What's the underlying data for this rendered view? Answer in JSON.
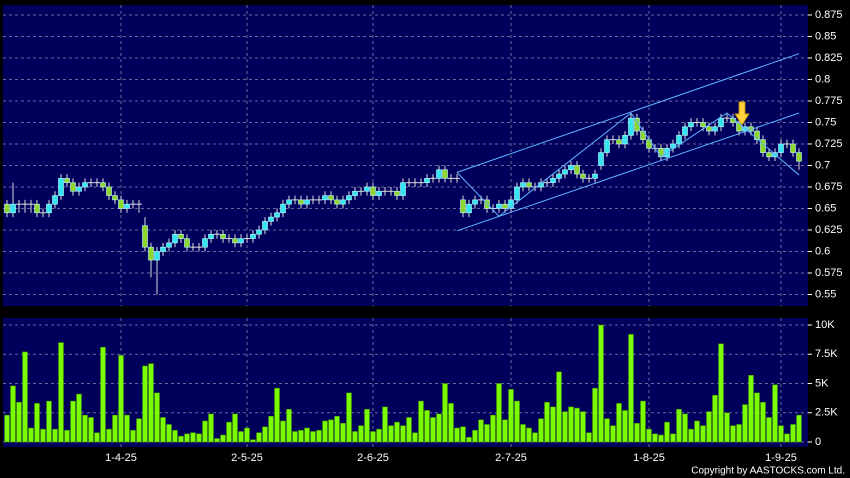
{
  "chart_data": {
    "type": "candlestick",
    "categories": [
      null,
      null,
      null,
      null,
      null,
      null,
      null,
      null,
      null,
      null,
      null,
      null,
      null,
      null,
      null,
      null,
      null,
      null,
      null,
      "1-4-25",
      null,
      null,
      null,
      null,
      null,
      null,
      null,
      null,
      null,
      null,
      null,
      null,
      null,
      null,
      null,
      null,
      null,
      null,
      null,
      null,
      "2-5-25",
      null,
      null,
      null,
      null,
      null,
      null,
      null,
      null,
      null,
      null,
      null,
      null,
      null,
      null,
      null,
      null,
      null,
      null,
      null,
      null,
      "2-6-25",
      null,
      null,
      null,
      null,
      null,
      null,
      null,
      null,
      null,
      null,
      null,
      null,
      null,
      null,
      null,
      null,
      null,
      null,
      null,
      null,
      null,
      null,
      "2-7-25",
      null,
      null,
      null,
      null,
      null,
      null,
      null,
      null,
      null,
      null,
      null,
      null,
      null,
      null,
      null,
      null,
      null,
      null,
      null,
      null,
      null,
      null,
      "1-8-25",
      null,
      null,
      null,
      null,
      null,
      null,
      null,
      null,
      null,
      null,
      null,
      null,
      null,
      null,
      null,
      null,
      null,
      null,
      null,
      null,
      null,
      "1-9-25",
      null,
      null,
      null
    ],
    "open": [
      0.655,
      0.645,
      0.655,
      0.655,
      0.655,
      0.655,
      0.645,
      0.645,
      0.655,
      0.665,
      0.685,
      0.68,
      0.67,
      0.675,
      0.68,
      0.68,
      0.68,
      0.675,
      0.665,
      0.66,
      0.65,
      0.655,
      0.655,
      0.63,
      0.605,
      0.59,
      0.6,
      0.605,
      0.61,
      0.62,
      0.615,
      0.605,
      0.605,
      0.605,
      0.615,
      0.62,
      0.62,
      0.615,
      0.615,
      0.61,
      0.615,
      0.615,
      0.62,
      0.625,
      0.635,
      0.64,
      0.645,
      0.655,
      0.66,
      0.66,
      0.655,
      0.66,
      0.66,
      0.66,
      0.665,
      0.66,
      0.655,
      0.66,
      0.665,
      0.67,
      0.67,
      0.675,
      0.665,
      0.67,
      0.67,
      0.67,
      0.665,
      0.68,
      0.68,
      0.68,
      0.68,
      0.685,
      0.685,
      0.695,
      0.685,
      0.685,
      0.66,
      0.645,
      0.655,
      0.66,
      0.66,
      0.65,
      0.65,
      0.655,
      0.65,
      0.66,
      0.675,
      0.68,
      0.675,
      0.675,
      0.68,
      0.68,
      0.685,
      0.69,
      0.695,
      0.7,
      0.69,
      0.685,
      0.685,
      0.7,
      0.715,
      0.73,
      0.73,
      0.725,
      0.735,
      0.755,
      0.74,
      0.73,
      0.72,
      0.72,
      0.71,
      0.72,
      0.725,
      0.735,
      0.745,
      0.75,
      0.75,
      0.745,
      0.74,
      0.745,
      0.755,
      0.755,
      0.75,
      0.74,
      0.745,
      0.74,
      0.73,
      0.715,
      0.71,
      0.715,
      0.725,
      0.725,
      0.715
    ],
    "high": [
      0.66,
      0.68,
      0.66,
      0.66,
      0.66,
      0.66,
      0.65,
      0.66,
      0.67,
      0.69,
      0.69,
      0.685,
      0.68,
      0.685,
      0.685,
      0.685,
      0.685,
      0.68,
      0.67,
      0.665,
      0.66,
      0.66,
      0.66,
      0.64,
      0.61,
      0.605,
      0.61,
      0.615,
      0.625,
      0.625,
      0.62,
      0.61,
      0.61,
      0.62,
      0.625,
      0.625,
      0.625,
      0.62,
      0.62,
      0.62,
      0.62,
      0.625,
      0.63,
      0.64,
      0.645,
      0.65,
      0.66,
      0.665,
      0.665,
      0.665,
      0.665,
      0.665,
      0.665,
      0.67,
      0.67,
      0.665,
      0.665,
      0.67,
      0.675,
      0.675,
      0.68,
      0.68,
      0.675,
      0.675,
      0.675,
      0.675,
      0.685,
      0.685,
      0.685,
      0.685,
      0.69,
      0.69,
      0.7,
      0.7,
      0.69,
      0.69,
      0.665,
      0.66,
      0.665,
      0.665,
      0.665,
      0.655,
      0.66,
      0.66,
      0.665,
      0.68,
      0.685,
      0.685,
      0.68,
      0.685,
      0.685,
      0.69,
      0.695,
      0.7,
      0.705,
      0.705,
      0.695,
      0.69,
      0.695,
      0.72,
      0.735,
      0.735,
      0.735,
      0.74,
      0.76,
      0.76,
      0.745,
      0.735,
      0.725,
      0.725,
      0.725,
      0.73,
      0.74,
      0.75,
      0.755,
      0.755,
      0.755,
      0.75,
      0.75,
      0.76,
      0.76,
      0.76,
      0.755,
      0.75,
      0.75,
      0.745,
      0.735,
      0.72,
      0.72,
      0.73,
      0.73,
      0.73,
      0.72
    ],
    "low": [
      0.64,
      0.64,
      0.645,
      0.645,
      0.645,
      0.64,
      0.64,
      0.64,
      0.65,
      0.66,
      0.675,
      0.665,
      0.665,
      0.67,
      0.675,
      0.675,
      0.67,
      0.66,
      0.655,
      0.645,
      0.645,
      0.65,
      0.645,
      0.6,
      0.57,
      0.55,
      0.595,
      0.6,
      0.605,
      0.61,
      0.6,
      0.6,
      0.6,
      0.6,
      0.61,
      0.615,
      0.61,
      0.61,
      0.605,
      0.605,
      0.61,
      0.61,
      0.615,
      0.62,
      0.63,
      0.635,
      0.64,
      0.65,
      0.655,
      0.65,
      0.65,
      0.655,
      0.655,
      0.655,
      0.655,
      0.65,
      0.65,
      0.655,
      0.66,
      0.665,
      0.665,
      0.66,
      0.66,
      0.665,
      0.665,
      0.66,
      0.66,
      0.675,
      0.675,
      0.675,
      0.675,
      0.68,
      0.68,
      0.68,
      0.68,
      0.68,
      0.64,
      0.64,
      0.65,
      0.655,
      0.645,
      0.645,
      0.645,
      0.645,
      0.645,
      0.655,
      0.67,
      0.67,
      0.67,
      0.67,
      0.675,
      0.675,
      0.68,
      0.685,
      0.69,
      0.685,
      0.68,
      0.68,
      0.68,
      0.695,
      0.71,
      0.725,
      0.72,
      0.72,
      0.73,
      0.735,
      0.725,
      0.715,
      0.715,
      0.705,
      0.705,
      0.715,
      0.72,
      0.73,
      0.74,
      0.745,
      0.74,
      0.735,
      0.735,
      0.74,
      0.75,
      0.745,
      0.735,
      0.735,
      0.735,
      0.725,
      0.71,
      0.705,
      0.705,
      0.71,
      0.72,
      0.71,
      0.695
    ],
    "close": [
      0.645,
      0.655,
      0.655,
      0.655,
      0.655,
      0.645,
      0.645,
      0.655,
      0.665,
      0.685,
      0.68,
      0.67,
      0.675,
      0.68,
      0.68,
      0.68,
      0.675,
      0.665,
      0.66,
      0.65,
      0.655,
      0.655,
      0.655,
      0.605,
      0.59,
      0.6,
      0.605,
      0.61,
      0.62,
      0.615,
      0.605,
      0.605,
      0.605,
      0.615,
      0.62,
      0.62,
      0.615,
      0.615,
      0.61,
      0.615,
      0.615,
      0.62,
      0.625,
      0.635,
      0.64,
      0.645,
      0.655,
      0.66,
      0.66,
      0.655,
      0.66,
      0.66,
      0.66,
      0.665,
      0.66,
      0.655,
      0.66,
      0.665,
      0.67,
      0.67,
      0.675,
      0.665,
      0.67,
      0.67,
      0.67,
      0.665,
      0.68,
      0.68,
      0.68,
      0.68,
      0.685,
      0.685,
      0.695,
      0.685,
      0.685,
      0.685,
      0.645,
      0.655,
      0.66,
      0.66,
      0.65,
      0.65,
      0.655,
      0.65,
      0.66,
      0.675,
      0.68,
      0.675,
      0.675,
      0.68,
      0.68,
      0.685,
      0.69,
      0.695,
      0.7,
      0.69,
      0.685,
      0.685,
      0.69,
      0.715,
      0.73,
      0.73,
      0.725,
      0.735,
      0.755,
      0.74,
      0.73,
      0.72,
      0.72,
      0.71,
      0.72,
      0.725,
      0.735,
      0.745,
      0.75,
      0.75,
      0.745,
      0.74,
      0.745,
      0.755,
      0.755,
      0.75,
      0.74,
      0.745,
      0.74,
      0.73,
      0.715,
      0.71,
      0.715,
      0.725,
      0.725,
      0.715,
      0.705
    ],
    "up_color": "#33e6f0",
    "down_color": "#8ed62b",
    "doji_color": "#dddddd",
    "ylim": [
      0.5366,
      0.8866
    ],
    "yticks": [
      0.55,
      0.575,
      0.6,
      0.625,
      0.65,
      0.675,
      0.7,
      0.725,
      0.75,
      0.775,
      0.8,
      0.825,
      0.85,
      0.875
    ],
    "grid": true,
    "trendlines": [
      {
        "x": [
          75,
          132
        ],
        "y": [
          0.692,
          0.83
        ]
      },
      {
        "x": [
          75,
          132
        ],
        "y": [
          0.624,
          0.761
        ]
      },
      {
        "x": [
          75,
          82,
          104,
          109,
          120,
          132
        ],
        "y": [
          0.692,
          0.641,
          0.761,
          0.71,
          0.761,
          0.689
        ]
      }
    ],
    "trendline_color": "#5fb4ff",
    "arrow": {
      "x": 122.5,
      "y": 0.746,
      "color": "#ffd23c"
    },
    "volume": {
      "values": [
        2300,
        4800,
        3400,
        7700,
        1200,
        3300,
        1100,
        3500,
        1100,
        8500,
        1000,
        3500,
        4100,
        2300,
        2100,
        800,
        8100,
        1100,
        2300,
        7400,
        2300,
        1000,
        2000,
        6500,
        6700,
        4200,
        2100,
        1500,
        1000,
        500,
        700,
        800,
        700,
        1800,
        2400,
        300,
        600,
        1700,
        2400,
        900,
        1200,
        200,
        800,
        1300,
        2200,
        4600,
        1800,
        2800,
        900,
        1000,
        1200,
        900,
        1000,
        1800,
        1900,
        2200,
        1600,
        4200,
        900,
        1400,
        2800,
        900,
        1100,
        3000,
        1400,
        1700,
        1400,
        2100,
        800,
        3500,
        2700,
        2100,
        2400,
        5000,
        3300,
        1200,
        1300,
        400,
        1000,
        1900,
        1500,
        2300,
        5000,
        1900,
        4500,
        3500,
        1500,
        1200,
        800,
        2000,
        3400,
        3000,
        6000,
        2600,
        3000,
        2900,
        2600,
        800,
        4600,
        10000,
        2000,
        1400,
        3300,
        2700,
        9200,
        1600,
        3500,
        1100,
        700,
        600,
        1700,
        700,
        2800,
        2400,
        1100,
        1800,
        1400,
        2600,
        4000,
        8400,
        2500,
        1400,
        1500,
        3200,
        5700,
        4200,
        3400,
        2100,
        4900,
        1400,
        700,
        1500,
        2300
      ],
      "color": "#7cfc00",
      "ylim": [
        -427,
        10598
      ],
      "yticks": [
        0,
        {
          "value": 2500,
          "label": "2.5K"
        },
        {
          "value": 5000,
          "label": "5K"
        },
        {
          "value": 7500,
          "label": "7.5K"
        },
        {
          "value": 10000,
          "label": "10K"
        }
      ]
    }
  },
  "copyright": "Copyright by AASTOCKS.com Ltd."
}
